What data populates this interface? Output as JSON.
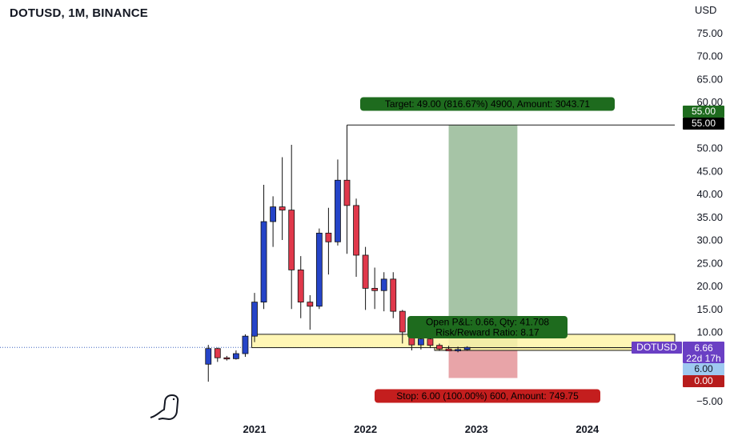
{
  "title": "DOTUSD, 1M, BINANCE",
  "currency": "USD",
  "colors": {
    "up": "#2544c8",
    "down": "#e0384b",
    "profit_zone": "#a6c4a6",
    "loss_zone": "#e8a4a8",
    "support_zone": "#fff5a8",
    "target_label_bg": "#1e6b1e",
    "stop_label_bg": "#c41e1e",
    "symbol_tag_bg": "#6a3fc4",
    "stop_tag_bg": "#b71c1c",
    "entry_tag_bg": "#9ec9f0",
    "last_price_line": "#3f63c0"
  },
  "chart_data": {
    "type": "candlestick",
    "symbol": "DOTUSD",
    "timeframe": "1M",
    "exchange": "BINANCE",
    "ylim": [
      -5,
      80
    ],
    "y_ticks": [
      -5,
      0,
      5,
      10,
      15,
      20,
      25,
      30,
      35,
      40,
      45,
      50,
      55,
      60,
      65,
      70,
      75
    ],
    "y_tick_labels": [
      "−5.00",
      "0.00",
      "5.00",
      "10.00",
      "15.00",
      "20.00",
      "25.00",
      "30.00",
      "35.00",
      "40.00",
      "45.00",
      "50.00",
      "55.00",
      "60.00",
      "65.00",
      "70.00",
      "75.00"
    ],
    "x_ticks": [
      {
        "label": "2021",
        "date": "2021-01"
      },
      {
        "label": "2022",
        "date": "2022-01"
      },
      {
        "label": "2023",
        "date": "2023-01"
      },
      {
        "label": "2024",
        "date": "2024-01"
      }
    ],
    "candles": [
      {
        "date": "2020-08",
        "open": 3.0,
        "high": 7.2,
        "low": -0.8,
        "close": 6.4
      },
      {
        "date": "2020-09",
        "open": 6.4,
        "high": 6.6,
        "low": 3.5,
        "close": 4.4
      },
      {
        "date": "2020-10",
        "open": 4.4,
        "high": 4.8,
        "low": 3.8,
        "close": 4.2
      },
      {
        "date": "2020-11",
        "open": 4.2,
        "high": 6.0,
        "low": 4.0,
        "close": 5.3
      },
      {
        "date": "2020-12",
        "open": 5.3,
        "high": 9.5,
        "low": 4.6,
        "close": 9.1
      },
      {
        "date": "2021-01",
        "open": 9.1,
        "high": 18.5,
        "low": 7.8,
        "close": 16.5
      },
      {
        "date": "2021-02",
        "open": 16.5,
        "high": 42.0,
        "low": 15.0,
        "close": 34.0
      },
      {
        "date": "2021-03",
        "open": 34.0,
        "high": 39.5,
        "low": 28.5,
        "close": 37.2
      },
      {
        "date": "2021-04",
        "open": 37.2,
        "high": 48.0,
        "low": 30.0,
        "close": 36.5
      },
      {
        "date": "2021-05",
        "open": 36.5,
        "high": 50.7,
        "low": 15.0,
        "close": 23.5
      },
      {
        "date": "2021-06",
        "open": 23.5,
        "high": 26.5,
        "low": 13.0,
        "close": 16.5
      },
      {
        "date": "2021-07",
        "open": 16.5,
        "high": 18.0,
        "low": 10.5,
        "close": 15.6
      },
      {
        "date": "2021-08",
        "open": 15.6,
        "high": 32.5,
        "low": 15.0,
        "close": 31.5
      },
      {
        "date": "2021-09",
        "open": 31.5,
        "high": 37.0,
        "low": 22.5,
        "close": 29.6
      },
      {
        "date": "2021-10",
        "open": 29.6,
        "high": 47.5,
        "low": 28.8,
        "close": 43.0
      },
      {
        "date": "2021-11",
        "open": 43.0,
        "high": 55.0,
        "low": 27.0,
        "close": 37.5
      },
      {
        "date": "2021-12",
        "open": 37.5,
        "high": 39.0,
        "low": 22.0,
        "close": 26.7
      },
      {
        "date": "2022-01",
        "open": 26.7,
        "high": 28.5,
        "low": 14.8,
        "close": 19.5
      },
      {
        "date": "2022-02",
        "open": 19.5,
        "high": 24.0,
        "low": 15.0,
        "close": 19.0
      },
      {
        "date": "2022-03",
        "open": 19.0,
        "high": 23.0,
        "low": 14.5,
        "close": 21.5
      },
      {
        "date": "2022-04",
        "open": 21.5,
        "high": 23.0,
        "low": 13.0,
        "close": 14.5
      },
      {
        "date": "2022-05",
        "open": 14.5,
        "high": 14.8,
        "low": 7.5,
        "close": 10.0
      },
      {
        "date": "2022-06",
        "open": 10.0,
        "high": 10.5,
        "low": 6.0,
        "close": 7.2
      },
      {
        "date": "2022-07",
        "open": 7.2,
        "high": 9.5,
        "low": 6.2,
        "close": 8.5
      },
      {
        "date": "2022-08",
        "open": 8.5,
        "high": 9.6,
        "low": 6.5,
        "close": 7.1
      },
      {
        "date": "2022-09",
        "open": 7.1,
        "high": 7.5,
        "low": 5.9,
        "close": 6.3
      },
      {
        "date": "2022-10",
        "open": 6.3,
        "high": 7.0,
        "low": 5.9,
        "close": 5.9
      },
      {
        "date": "2022-11",
        "open": 5.9,
        "high": 6.8,
        "low": 5.6,
        "close": 6.2
      },
      {
        "date": "2022-12",
        "open": 6.2,
        "high": 6.9,
        "low": 5.9,
        "close": 6.66
      }
    ],
    "support_zone": {
      "from": 6.6,
      "to": 9.5,
      "start_date": "2020-12",
      "end_date": "2024-07"
    },
    "lower_band": {
      "from": 6.0,
      "to": 6.6,
      "start_date": "2022-09",
      "end_date": "2024-07"
    },
    "target_line": {
      "price": 55.0,
      "start_date": "2021-11"
    },
    "last_price": 6.66,
    "long_position": {
      "entry": 6.0,
      "target": 55.0,
      "stop": 0.0,
      "start_date": "2022-10",
      "end_date": "2023-05"
    },
    "labels": {
      "target": "Target: 49.00 (816.67%) 4900, Amount: 3043.71",
      "open_pl": "Open P&L: 0.66, Qty: 41.708",
      "risk_reward": "Risk/Reward Ratio: 8.17",
      "stop": "Stop: 6.00 (100.00%) 600, Amount: 749.75"
    },
    "price_tags": {
      "target_green": "55.00",
      "target_black": "55.00",
      "symbol": "DOTUSD",
      "last_price": "6.66",
      "countdown": "22d 17h",
      "entry": "6.00",
      "stop": "0.00"
    }
  }
}
